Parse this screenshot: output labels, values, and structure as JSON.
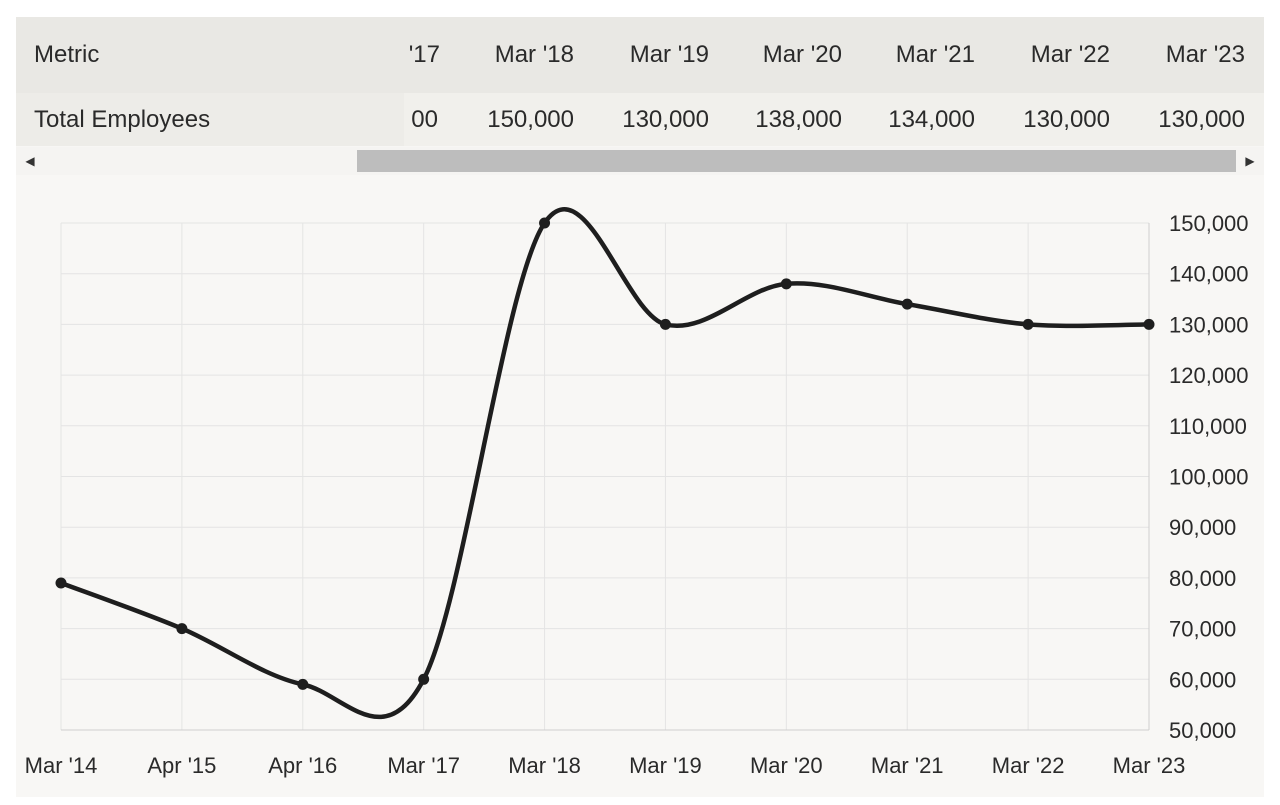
{
  "table": {
    "header": {
      "metric_label": "Metric",
      "columns": [
        "'17",
        "Mar '18",
        "Mar '19",
        "Mar '20",
        "Mar '21",
        "Mar '22",
        "Mar '23"
      ]
    },
    "rows": [
      {
        "metric": "Total Employees",
        "values": [
          "00",
          "150,000",
          "130,000",
          "138,000",
          "134,000",
          "130,000",
          "130,000"
        ]
      }
    ]
  },
  "scrollbar": {
    "left_arrow": "◀",
    "right_arrow": "▶"
  },
  "colors": {
    "line": "#1e1e1e",
    "grid": "#e4e4e4",
    "axis_text": "#2a2a2a"
  },
  "chart_data": {
    "type": "line",
    "categories": [
      "Mar '14",
      "Apr '15",
      "Apr '16",
      "Mar '17",
      "Mar '18",
      "Mar '19",
      "Mar '20",
      "Mar '21",
      "Mar '22",
      "Mar '23"
    ],
    "series": [
      {
        "values": [
          79000,
          70000,
          59000,
          60000,
          150000,
          130000,
          138000,
          134000,
          130000,
          130000
        ]
      }
    ],
    "ylim": [
      50000,
      150000
    ],
    "yticks": [
      50000,
      60000,
      70000,
      80000,
      90000,
      100000,
      110000,
      120000,
      130000,
      140000,
      150000
    ],
    "ytick_labels": [
      "50,000",
      "60,000",
      "70,000",
      "80,000",
      "90,000",
      "100,000",
      "110,000",
      "120,000",
      "130,000",
      "140,000",
      "150,000"
    ],
    "y_axis_side": "right",
    "grid": true,
    "smooth": true
  }
}
